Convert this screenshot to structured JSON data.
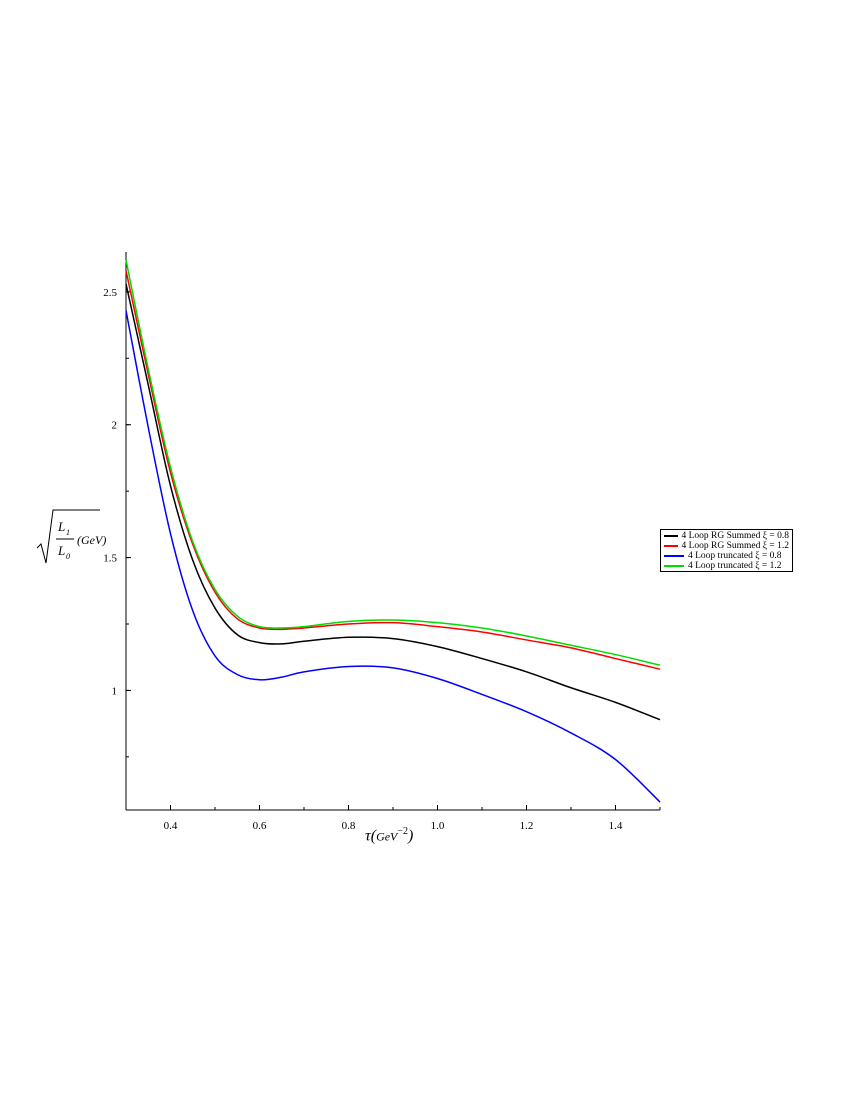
{
  "chart_data": {
    "type": "line",
    "xlabel_parts": {
      "symbol": "τ",
      "unit": "GeV",
      "exp": "−2"
    },
    "ylabel_parts": {
      "num": "L",
      "num_sub": "1",
      "den": "L",
      "den_sub": "0",
      "unit": "(GeV)"
    },
    "xlim": [
      0.3,
      1.5
    ],
    "ylim": [
      0.55,
      2.65
    ],
    "xticks": [
      0.4,
      0.6,
      0.8,
      1.0,
      1.2,
      1.4
    ],
    "xtick_labels": [
      "0.4",
      "0.6",
      "0.8",
      "1.0",
      "1.2",
      "1.4"
    ],
    "yticks": [
      1.0,
      1.5,
      2.0,
      2.5
    ],
    "ytick_labels": [
      "1",
      "1.5",
      "2",
      "2.5"
    ],
    "legend_position": "right",
    "grid": false,
    "series": [
      {
        "name": "4 Loop RG Summed ξ = 0.8",
        "color": "#000000",
        "x": [
          0.3,
          0.35,
          0.4,
          0.45,
          0.5,
          0.55,
          0.6,
          0.65,
          0.7,
          0.8,
          0.9,
          1.0,
          1.1,
          1.2,
          1.3,
          1.4,
          1.5
        ],
        "y": [
          2.53,
          2.15,
          1.77,
          1.49,
          1.31,
          1.21,
          1.18,
          1.175,
          1.185,
          1.2,
          1.195,
          1.165,
          1.12,
          1.07,
          1.01,
          0.955,
          0.89
        ]
      },
      {
        "name": "4 Loop RG Summed ξ = 1.2",
        "color": "#ff0000",
        "x": [
          0.3,
          0.35,
          0.4,
          0.45,
          0.5,
          0.55,
          0.6,
          0.65,
          0.7,
          0.8,
          0.9,
          1.0,
          1.1,
          1.2,
          1.3,
          1.4,
          1.5
        ],
        "y": [
          2.58,
          2.19,
          1.82,
          1.55,
          1.37,
          1.27,
          1.235,
          1.23,
          1.235,
          1.25,
          1.255,
          1.24,
          1.22,
          1.19,
          1.16,
          1.12,
          1.08
        ]
      },
      {
        "name": "4 Loop truncated ξ = 0.8",
        "color": "#0000ff",
        "x": [
          0.3,
          0.35,
          0.4,
          0.45,
          0.5,
          0.55,
          0.6,
          0.65,
          0.7,
          0.8,
          0.9,
          1.0,
          1.1,
          1.2,
          1.3,
          1.4,
          1.5
        ],
        "y": [
          2.43,
          1.99,
          1.59,
          1.3,
          1.13,
          1.06,
          1.04,
          1.05,
          1.07,
          1.09,
          1.085,
          1.045,
          0.985,
          0.92,
          0.84,
          0.74,
          0.58
        ]
      },
      {
        "name": "4 Loop truncated ξ = 1.2",
        "color": "#00dd00",
        "x": [
          0.3,
          0.35,
          0.4,
          0.45,
          0.5,
          0.55,
          0.6,
          0.65,
          0.7,
          0.8,
          0.9,
          1.0,
          1.1,
          1.2,
          1.3,
          1.4,
          1.5
        ],
        "y": [
          2.62,
          2.21,
          1.84,
          1.56,
          1.38,
          1.28,
          1.24,
          1.235,
          1.24,
          1.26,
          1.265,
          1.255,
          1.235,
          1.205,
          1.17,
          1.135,
          1.095
        ]
      }
    ]
  }
}
